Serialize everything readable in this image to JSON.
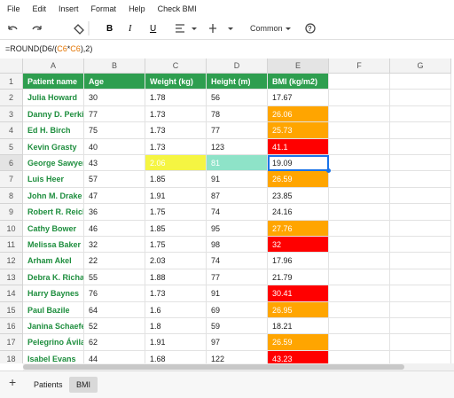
{
  "menu": [
    "File",
    "Edit",
    "Insert",
    "Format",
    "Help",
    "Check BMI"
  ],
  "toolbar": {
    "font": "Common"
  },
  "formula": {
    "parts": [
      "=ROUND(D6/(",
      "C6",
      "*",
      "C6",
      "),2)"
    ]
  },
  "columns": [
    "A",
    "B",
    "C",
    "D",
    "E",
    "F",
    "G"
  ],
  "row_numbers": [
    1,
    2,
    3,
    4,
    5,
    6,
    7,
    8,
    9,
    10,
    11,
    12,
    13,
    14,
    15,
    16,
    17,
    18
  ],
  "table": {
    "header": [
      "Patient name",
      "Age",
      "Weight (kg)",
      "Height (m)",
      "BMI (kg/m2)"
    ],
    "rows": [
      [
        "Julia Howard",
        30,
        1.78,
        56,
        17.67
      ],
      [
        "Danny D. Perkins",
        77,
        1.73,
        78,
        26.06
      ],
      [
        "Ed H. Birch",
        75,
        1.73,
        77,
        25.73
      ],
      [
        "Kevin Grasty",
        40,
        1.73,
        123,
        41.1
      ],
      [
        "George Sawyer",
        43,
        2.06,
        81,
        19.09
      ],
      [
        "Luis Heer",
        57,
        1.85,
        91,
        26.59
      ],
      [
        "John M. Drake",
        47,
        1.91,
        87,
        23.85
      ],
      [
        "Robert R. Reich",
        36,
        1.75,
        74,
        24.16
      ],
      [
        "Cathy Bower",
        46,
        1.85,
        95,
        27.76
      ],
      [
        "Melissa Baker",
        32,
        1.75,
        98,
        32
      ],
      [
        "Arham Akel",
        22,
        2.03,
        74,
        17.96
      ],
      [
        "Debra K. Richards",
        55,
        1.88,
        77,
        21.79
      ],
      [
        "Harry Baynes",
        76,
        1.73,
        91,
        30.41
      ],
      [
        "Paul Bazile",
        64,
        1.6,
        69,
        26.95
      ],
      [
        "Janina Schaefer",
        52,
        1.8,
        59,
        18.21
      ],
      [
        "Pelegrino Ávila Pa",
        62,
        1.91,
        97,
        26.59
      ],
      [
        "Isabel Evans",
        44,
        1.68,
        122,
        43.23
      ]
    ]
  },
  "tabs": [
    "Patients",
    "BMI"
  ]
}
